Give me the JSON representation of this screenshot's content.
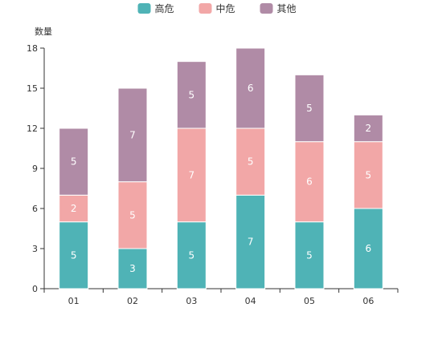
{
  "chart_data": {
    "type": "bar",
    "stacked": true,
    "ylabel": "数量",
    "xlabel": "",
    "categories": [
      "01",
      "02",
      "03",
      "04",
      "05",
      "06"
    ],
    "ylim": [
      0,
      18
    ],
    "yticks": [
      0,
      3,
      6,
      9,
      12,
      15,
      18
    ],
    "grid": false,
    "legend_position": "top-center",
    "series": [
      {
        "name": "高危",
        "color": "#4fb3b6",
        "values": [
          5,
          3,
          5,
          7,
          5,
          6
        ]
      },
      {
        "name": "中危",
        "color": "#f2a7a7",
        "values": [
          2,
          5,
          7,
          5,
          6,
          5
        ]
      },
      {
        "name": "其他",
        "color": "#b08ba6",
        "values": [
          5,
          7,
          5,
          6,
          5,
          2
        ]
      }
    ]
  }
}
